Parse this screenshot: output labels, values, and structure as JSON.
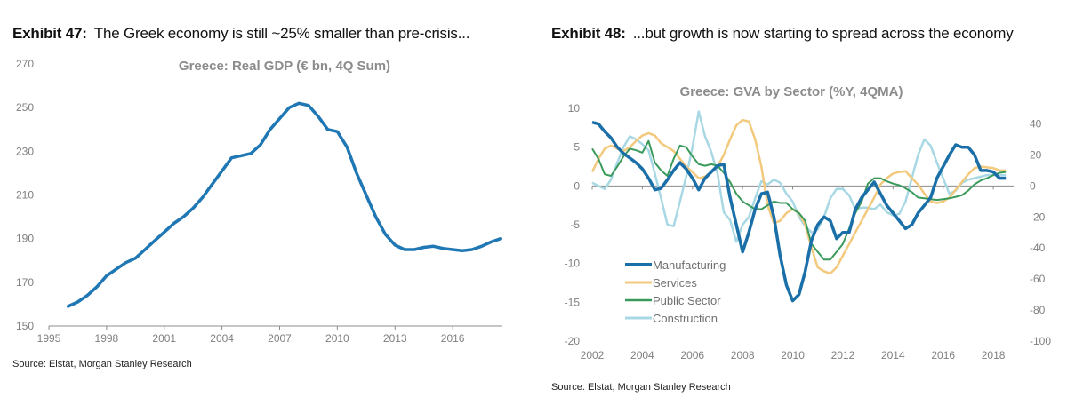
{
  "exhibits": [
    {
      "number": "Exhibit 47:",
      "caption": "The Greek economy is still ~25% smaller than pre-crisis...",
      "source": "Source: Elstat, Morgan Stanley Research"
    },
    {
      "number": "Exhibit 48:",
      "caption": "...but growth is now starting to spread across the economy",
      "source": "Source: Elstat, Morgan Stanley Research"
    }
  ],
  "chart_data": [
    {
      "type": "line",
      "title": "Greece: Real GDP (€ bn, 4Q Sum)",
      "xlabel": "",
      "ylabel": "",
      "xlim": [
        1995,
        2019
      ],
      "ylim": [
        150,
        270
      ],
      "xticks": [
        1995,
        1998,
        2001,
        2004,
        2007,
        2010,
        2013,
        2016
      ],
      "yticks": [
        150,
        170,
        190,
        210,
        230,
        250,
        270
      ],
      "grid": false,
      "legend": "none",
      "series": [
        {
          "name": "Real GDP",
          "color": "#1f77b4",
          "x": [
            1996.0,
            1996.5,
            1997.0,
            1997.5,
            1998.0,
            1998.5,
            1999.0,
            1999.5,
            2000.0,
            2000.5,
            2001.0,
            2001.5,
            2002.0,
            2002.5,
            2003.0,
            2003.5,
            2004.0,
            2004.5,
            2005.0,
            2005.5,
            2006.0,
            2006.5,
            2007.0,
            2007.5,
            2008.0,
            2008.5,
            2009.0,
            2009.5,
            2010.0,
            2010.5,
            2011.0,
            2011.5,
            2012.0,
            2012.5,
            2013.0,
            2013.5,
            2014.0,
            2014.5,
            2015.0,
            2015.5,
            2016.0,
            2016.5,
            2017.0,
            2017.5,
            2018.0,
            2018.5
          ],
          "values": [
            159,
            161,
            164,
            168,
            173,
            176,
            179,
            181,
            185,
            189,
            193,
            197,
            200,
            204,
            209,
            215,
            221,
            227,
            228,
            229,
            233,
            240,
            245,
            250,
            252,
            251,
            246,
            240,
            239,
            232,
            220,
            210,
            200,
            192,
            187,
            185,
            185,
            186,
            186.5,
            185.5,
            185,
            184.5,
            185,
            186.5,
            188.5,
            190
          ]
        }
      ]
    },
    {
      "type": "line",
      "title": "Greece: GVA by Sector (%Y, 4QMA)",
      "xlabel": "",
      "ylabel": "",
      "xlim": [
        2002,
        2018.6
      ],
      "ylim": [
        -20,
        10
      ],
      "y2lim": [
        -100,
        50
      ],
      "xticks": [
        2002,
        2004,
        2006,
        2008,
        2010,
        2012,
        2014,
        2016,
        2018
      ],
      "yticks": [
        -20,
        -15,
        -10,
        -5,
        0,
        5,
        10
      ],
      "y2ticks": [
        -100,
        -80,
        -60,
        -40,
        -20,
        0,
        20,
        40
      ],
      "grid": false,
      "legend": "bottom-left",
      "series": [
        {
          "name": "Manufacturing",
          "axis": "left",
          "color": "#1a6fa8",
          "x": [
            2002.0,
            2002.25,
            2002.5,
            2002.75,
            2003.0,
            2003.25,
            2003.5,
            2003.75,
            2004.0,
            2004.25,
            2004.5,
            2004.75,
            2005.0,
            2005.25,
            2005.5,
            2005.75,
            2006.0,
            2006.25,
            2006.5,
            2006.75,
            2007.0,
            2007.25,
            2007.5,
            2007.75,
            2008.0,
            2008.25,
            2008.5,
            2008.75,
            2009.0,
            2009.25,
            2009.5,
            2009.75,
            2010.0,
            2010.25,
            2010.5,
            2010.75,
            2011.0,
            2011.25,
            2011.5,
            2011.75,
            2012.0,
            2012.25,
            2012.5,
            2012.75,
            2013.0,
            2013.25,
            2013.5,
            2013.75,
            2014.0,
            2014.25,
            2014.5,
            2014.75,
            2015.0,
            2015.25,
            2015.5,
            2015.75,
            2016.0,
            2016.25,
            2016.5,
            2016.75,
            2017.0,
            2017.25,
            2017.5,
            2017.75,
            2018.0,
            2018.25,
            2018.5
          ],
          "values": [
            8.2,
            8.0,
            7.0,
            6.2,
            5.0,
            4.2,
            3.6,
            3.0,
            2.2,
            1.0,
            -0.5,
            -0.3,
            0.8,
            2.0,
            3.0,
            2.2,
            1.0,
            -0.5,
            1.0,
            1.8,
            2.6,
            2.8,
            -1.5,
            -5.0,
            -8.5,
            -6.0,
            -3.0,
            -1.0,
            -0.8,
            -4.0,
            -9.0,
            -12.8,
            -14.8,
            -14.0,
            -11.0,
            -7.0,
            -5.0,
            -4.0,
            -4.5,
            -6.8,
            -6.0,
            -6.0,
            -3.0,
            -1.5,
            -0.5,
            0.5,
            -1.0,
            -2.5,
            -3.5,
            -4.5,
            -5.5,
            -5.0,
            -3.5,
            -2.5,
            -1.5,
            1.0,
            2.5,
            4.0,
            5.3,
            5.0,
            5.0,
            4.0,
            2.0,
            2.0,
            1.8,
            1.0,
            1.0
          ]
        },
        {
          "name": "Services",
          "axis": "left",
          "color": "#f2c97d",
          "x": [
            2002.0,
            2002.25,
            2002.5,
            2002.75,
            2003.0,
            2003.25,
            2003.5,
            2003.75,
            2004.0,
            2004.25,
            2004.5,
            2004.75,
            2005.0,
            2005.25,
            2005.5,
            2005.75,
            2006.0,
            2006.25,
            2006.5,
            2006.75,
            2007.0,
            2007.25,
            2007.5,
            2007.75,
            2008.0,
            2008.25,
            2008.5,
            2008.75,
            2009.0,
            2009.25,
            2009.5,
            2009.75,
            2010.0,
            2010.25,
            2010.5,
            2010.75,
            2011.0,
            2011.25,
            2011.5,
            2011.75,
            2012.0,
            2012.25,
            2012.5,
            2012.75,
            2013.0,
            2013.25,
            2013.5,
            2013.75,
            2014.0,
            2014.25,
            2014.5,
            2014.75,
            2015.0,
            2015.25,
            2015.5,
            2015.75,
            2016.0,
            2016.25,
            2016.5,
            2016.75,
            2017.0,
            2017.25,
            2017.5,
            2017.75,
            2018.0,
            2018.25,
            2018.5
          ],
          "values": [
            1.8,
            3.5,
            4.8,
            5.2,
            4.8,
            4.5,
            5.0,
            5.8,
            6.5,
            6.8,
            6.5,
            5.5,
            5.0,
            4.5,
            3.5,
            2.5,
            1.8,
            1.0,
            1.2,
            1.8,
            2.5,
            4.0,
            6.0,
            7.8,
            8.5,
            8.3,
            6.0,
            2.5,
            -2.5,
            -4.8,
            -4.5,
            -3.5,
            -3.0,
            -3.5,
            -5.0,
            -8.0,
            -10.5,
            -11.0,
            -11.3,
            -10.5,
            -9.0,
            -7.5,
            -6.0,
            -4.5,
            -3.0,
            -1.5,
            0.2,
            1.0,
            1.6,
            1.8,
            1.9,
            1.0,
            0.2,
            -1.0,
            -2.0,
            -2.2,
            -2.0,
            -1.5,
            -0.5,
            0.5,
            1.5,
            2.3,
            2.5,
            2.4,
            2.3,
            2.0,
            2.0
          ]
        },
        {
          "name": "Public Sector",
          "axis": "left",
          "color": "#3a9a5b",
          "x": [
            2002.0,
            2002.25,
            2002.5,
            2002.75,
            2003.0,
            2003.25,
            2003.5,
            2003.75,
            2004.0,
            2004.25,
            2004.5,
            2004.75,
            2005.0,
            2005.25,
            2005.5,
            2005.75,
            2006.0,
            2006.25,
            2006.5,
            2006.75,
            2007.0,
            2007.25,
            2007.5,
            2007.75,
            2008.0,
            2008.25,
            2008.5,
            2008.75,
            2009.0,
            2009.25,
            2009.5,
            2009.75,
            2010.0,
            2010.25,
            2010.5,
            2010.75,
            2011.0,
            2011.25,
            2011.5,
            2011.75,
            2012.0,
            2012.25,
            2012.5,
            2012.75,
            2013.0,
            2013.25,
            2013.5,
            2013.75,
            2014.0,
            2014.25,
            2014.5,
            2014.75,
            2015.0,
            2015.25,
            2015.5,
            2015.75,
            2016.0,
            2016.25,
            2016.5,
            2016.75,
            2017.0,
            2017.25,
            2017.5,
            2017.75,
            2018.0,
            2018.25,
            2018.5
          ],
          "values": [
            4.8,
            3.5,
            1.5,
            1.3,
            2.5,
            3.8,
            4.8,
            4.6,
            4.3,
            5.8,
            3.0,
            2.0,
            1.3,
            3.5,
            5.2,
            5.0,
            3.8,
            2.8,
            2.6,
            2.8,
            2.6,
            1.7,
            0.5,
            -1.0,
            -2.0,
            -2.5,
            -3.0,
            -3.0,
            -2.5,
            -2.0,
            -2.2,
            -2.2,
            -3.0,
            -3.5,
            -4.5,
            -7.5,
            -8.5,
            -9.5,
            -9.5,
            -8.5,
            -7.5,
            -5.5,
            -3.5,
            -2.0,
            0.3,
            1.0,
            1.0,
            0.6,
            0.3,
            0.1,
            -0.3,
            -0.8,
            -1.5,
            -1.6,
            -1.7,
            -1.8,
            -1.7,
            -1.6,
            -1.4,
            -1.2,
            -0.6,
            0.2,
            0.7,
            1.0,
            1.4,
            1.7,
            1.8
          ]
        },
        {
          "name": "Construction",
          "axis": "right",
          "color": "#a8d8e4",
          "x": [
            2002.0,
            2002.25,
            2002.5,
            2002.75,
            2003.0,
            2003.25,
            2003.5,
            2003.75,
            2004.0,
            2004.25,
            2004.5,
            2004.75,
            2005.0,
            2005.25,
            2005.5,
            2005.75,
            2006.0,
            2006.25,
            2006.5,
            2006.75,
            2007.0,
            2007.25,
            2007.5,
            2007.75,
            2008.0,
            2008.25,
            2008.5,
            2008.75,
            2009.0,
            2009.25,
            2009.5,
            2009.75,
            2010.0,
            2010.25,
            2010.5,
            2010.75,
            2011.0,
            2011.25,
            2011.5,
            2011.75,
            2012.0,
            2012.25,
            2012.5,
            2012.75,
            2013.0,
            2013.25,
            2013.5,
            2013.75,
            2014.0,
            2014.25,
            2014.5,
            2014.75,
            2015.0,
            2015.25,
            2015.5,
            2015.75,
            2016.0,
            2016.25,
            2016.5,
            2016.75,
            2017.0,
            2017.25,
            2017.5,
            2017.75,
            2018.0,
            2018.25,
            2018.5
          ],
          "values": [
            2,
            0,
            -2,
            4,
            15,
            25,
            32,
            30,
            27,
            23,
            8,
            -8,
            -25,
            -26,
            -10,
            6,
            25,
            48,
            32,
            22,
            8,
            -17,
            -22,
            -36,
            -25,
            -20,
            -8,
            3,
            1,
            4,
            2,
            -5,
            -10,
            -20,
            -26,
            -30,
            -28,
            -20,
            -8,
            -2,
            -2,
            -6,
            -15,
            -14,
            -14,
            -15,
            -12,
            -17,
            -19,
            -18,
            -10,
            5,
            20,
            30,
            26,
            15,
            5,
            -5,
            -3,
            2,
            4,
            5,
            6,
            7,
            7,
            7,
            7
          ]
        }
      ]
    }
  ]
}
